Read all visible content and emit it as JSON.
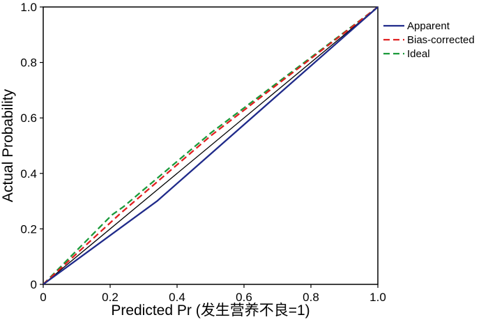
{
  "chart_data": {
    "type": "line",
    "title": "",
    "xlabel": "Predicted Pr (发生营养不良=1)",
    "ylabel": "Actual Probability",
    "xlim": [
      0,
      1
    ],
    "ylim": [
      0,
      1
    ],
    "xticks": [
      "0",
      "0.2",
      "0.4",
      "0.6",
      "0.8",
      "1.0"
    ],
    "yticks": [
      "0",
      "0.2",
      "0.4",
      "0.6",
      "0.8",
      "1.0"
    ],
    "grid": false,
    "legend_position": "right",
    "series": [
      {
        "name": "Apparent",
        "color": "#1f2a8a",
        "style": "solid",
        "x": [
          0,
          0.34,
          1.0
        ],
        "y": [
          0,
          0.3,
          1.0
        ]
      },
      {
        "name": "Bias-corrected",
        "color": "#e02020",
        "style": "dashed",
        "x": [
          0,
          0.23,
          0.5,
          1.0
        ],
        "y": [
          0,
          0.255,
          0.535,
          1.0
        ]
      },
      {
        "name": "Ideal",
        "color": "#1a9a3a",
        "style": "dashed",
        "x": [
          0,
          0.205,
          0.24,
          0.5,
          1.0
        ],
        "y": [
          0,
          0.25,
          0.28,
          0.545,
          1.0
        ]
      }
    ],
    "reference_line": {
      "color": "#000000",
      "x": [
        0,
        1
      ],
      "y": [
        0,
        1
      ]
    }
  }
}
